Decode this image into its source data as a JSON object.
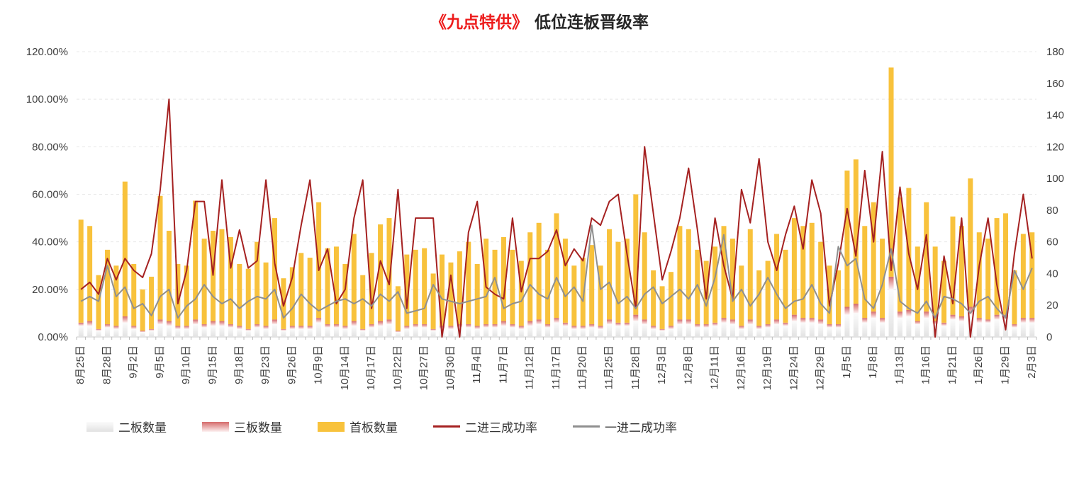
{
  "title": {
    "highlight": "《九点特供》",
    "rest": "低位连板晋级率"
  },
  "colors": {
    "title_highlight": "#ed1c1c",
    "title_text": "#262626",
    "bar_first_board": "#f8c23c",
    "bar_second_board_top": "#fbfbfb",
    "bar_second_board_bottom": "#e2e2e2",
    "bar_third_board_top": "#d56a6a",
    "bar_third_board_bottom": "#fdf0f0",
    "line_two_to_three": "#a52121",
    "line_one_to_two": "#8f8f8f",
    "grid": "#e8e8e8",
    "axis_text": "#404040"
  },
  "chart_data": {
    "type": "bar",
    "subtype": "stacked bars (counts, right axis) + two percentage lines (left axis)",
    "title": "《九点特供》低位连板晋级率",
    "n_points": 109,
    "label_every": 3,
    "grid": "horizontal dashed",
    "legend_position": "bottom-left",
    "x_tick_labels": [
      "8月25日",
      "8月28日",
      "9月2日",
      "9月5日",
      "9月10日",
      "9月15日",
      "9月18日",
      "9月23日",
      "9月26日",
      "10月9日",
      "10月14日",
      "10月17日",
      "10月22日",
      "10月27日",
      "10月30日",
      "11月4日",
      "11月7日",
      "11月12日",
      "11月17日",
      "11月20日",
      "11月25日",
      "11月28日",
      "12月3日",
      "12月8日",
      "12月11日",
      "12月16日",
      "12月19日",
      "12月24日",
      "12月29日",
      "1月5日",
      "1月8日",
      "1月13日",
      "1月16日",
      "1月21日",
      "1月26日",
      "1月29日",
      "2月3日"
    ],
    "left_axis": {
      "ticks": [
        "0.00%",
        "20.00%",
        "40.00%",
        "60.00%",
        "80.00%",
        "100.00%",
        "120.00%"
      ],
      "min_pct": 0,
      "max_pct": 120
    },
    "right_axis": {
      "ticks": [
        "0",
        "20",
        "40",
        "60",
        "80",
        "100",
        "120",
        "140",
        "160",
        "180"
      ],
      "min": 0,
      "max": 180
    },
    "series": [
      {
        "name": "二板数量",
        "type": "bar",
        "axis": "right",
        "stack_order": 1,
        "values": [
          7,
          7,
          4,
          6,
          5,
          9,
          5,
          3,
          4,
          8,
          7,
          5,
          5,
          8,
          6,
          7,
          7,
          6,
          5,
          4,
          6,
          5,
          8,
          4,
          5,
          5,
          5,
          9,
          6,
          6,
          5,
          7,
          4,
          6,
          7,
          8,
          3,
          5,
          6,
          6,
          4,
          5,
          5,
          6,
          6,
          5,
          6,
          6,
          7,
          6,
          5,
          7,
          8,
          6,
          9,
          7,
          5,
          5,
          6,
          5,
          8,
          7,
          7,
          10,
          8,
          5,
          4,
          5,
          8,
          8,
          6,
          6,
          7,
          9,
          8,
          5,
          8,
          5,
          6,
          8,
          7,
          10,
          9,
          9,
          8,
          6,
          6,
          14,
          15,
          9,
          12,
          9,
          30,
          12,
          13,
          8,
          12,
          8,
          7,
          11,
          10,
          14,
          9,
          9,
          11,
          11,
          6,
          9,
          9
        ]
      },
      {
        "name": "三板数量",
        "type": "bar",
        "axis": "right",
        "stack_order": 2,
        "values": [
          2,
          3,
          1,
          2,
          2,
          4,
          2,
          1,
          1,
          3,
          3,
          2,
          2,
          3,
          2,
          3,
          3,
          2,
          2,
          1,
          2,
          2,
          3,
          1,
          2,
          2,
          2,
          3,
          2,
          2,
          2,
          3,
          1,
          2,
          3,
          3,
          1,
          2,
          2,
          2,
          1,
          2,
          2,
          2,
          2,
          2,
          2,
          2,
          3,
          2,
          2,
          3,
          3,
          2,
          3,
          2,
          2,
          2,
          2,
          2,
          3,
          2,
          2,
          4,
          3,
          2,
          1,
          2,
          3,
          3,
          2,
          2,
          2,
          3,
          3,
          2,
          3,
          2,
          2,
          3,
          2,
          4,
          3,
          3,
          3,
          2,
          2,
          5,
          6,
          3,
          4,
          3,
          8,
          4,
          4,
          2,
          4,
          2,
          2,
          3,
          3,
          5,
          3,
          2,
          3,
          3,
          2,
          3,
          3
        ]
      },
      {
        "name": "首板数量",
        "type": "bar",
        "axis": "right",
        "stack_order": 3,
        "values": [
          65,
          60,
          34,
          47,
          38,
          85,
          39,
          26,
          33,
          78,
          57,
          39,
          38,
          75,
          54,
          57,
          58,
          55,
          39,
          38,
          52,
          40,
          64,
          32,
          37,
          46,
          43,
          73,
          48,
          49,
          39,
          55,
          34,
          45,
          61,
          64,
          28,
          45,
          47,
          48,
          35,
          45,
          40,
          46,
          52,
          39,
          54,
          47,
          53,
          47,
          41,
          56,
          61,
          47,
          66,
          53,
          38,
          43,
          50,
          38,
          57,
          51,
          53,
          76,
          55,
          35,
          27,
          34,
          59,
          57,
          47,
          40,
          48,
          58,
          51,
          38,
          57,
          35,
          40,
          54,
          46,
          61,
          58,
          60,
          49,
          37,
          34,
          86,
          91,
          58,
          69,
          50,
          132,
          72,
          77,
          47,
          69,
          47,
          39,
          62,
          57,
          81,
          54,
          51,
          61,
          64,
          34,
          53,
          54
        ]
      },
      {
        "name": "二进三成功率",
        "type": "line",
        "axis": "left",
        "unit": "%",
        "values_pct": [
          20,
          23,
          18,
          33,
          24,
          33,
          28,
          25,
          35,
          62,
          100,
          14,
          28,
          57,
          57,
          26,
          66,
          29,
          45,
          29,
          32,
          66,
          31,
          13,
          25,
          47,
          66,
          28,
          37,
          14,
          20,
          50,
          66,
          12,
          32,
          22,
          62,
          12,
          50,
          50,
          50,
          0,
          26,
          0,
          44,
          57,
          21,
          18,
          16,
          50,
          19,
          33,
          33,
          36,
          45,
          30,
          37,
          32,
          50,
          47,
          57,
          60,
          35,
          12,
          80,
          52,
          24,
          36,
          50,
          71,
          45,
          16,
          50,
          30,
          16,
          62,
          48,
          75,
          40,
          28,
          43,
          55,
          37,
          66,
          52,
          13,
          31,
          54,
          34,
          70,
          40,
          78,
          28,
          63,
          35,
          20,
          43,
          0,
          34,
          14,
          50,
          0,
          30,
          50,
          22,
          3,
          35,
          60,
          33
        ]
      },
      {
        "name": "一进二成功率",
        "type": "line",
        "axis": "left",
        "unit": "%",
        "values_pct": [
          15,
          17,
          15,
          30,
          17,
          21,
          12,
          14,
          9,
          17,
          20,
          8,
          13,
          16,
          22,
          17,
          14,
          16,
          12,
          15,
          17,
          16,
          20,
          8,
          12,
          18,
          14,
          11,
          13,
          15,
          16,
          14,
          16,
          13,
          18,
          15,
          19,
          10,
          11,
          12,
          22,
          16,
          15,
          14,
          15,
          16,
          17,
          25,
          12,
          14,
          15,
          22,
          18,
          16,
          25,
          17,
          21,
          15,
          47,
          20,
          23,
          14,
          17,
          12,
          18,
          21,
          14,
          17,
          20,
          16,
          22,
          13,
          25,
          43,
          15,
          20,
          13,
          18,
          25,
          18,
          12,
          15,
          16,
          22,
          14,
          10,
          38,
          30,
          33,
          16,
          12,
          22,
          37,
          15,
          12,
          10,
          15,
          8,
          17,
          16,
          14,
          10,
          15,
          17,
          12,
          8,
          28,
          20,
          29
        ]
      }
    ]
  }
}
